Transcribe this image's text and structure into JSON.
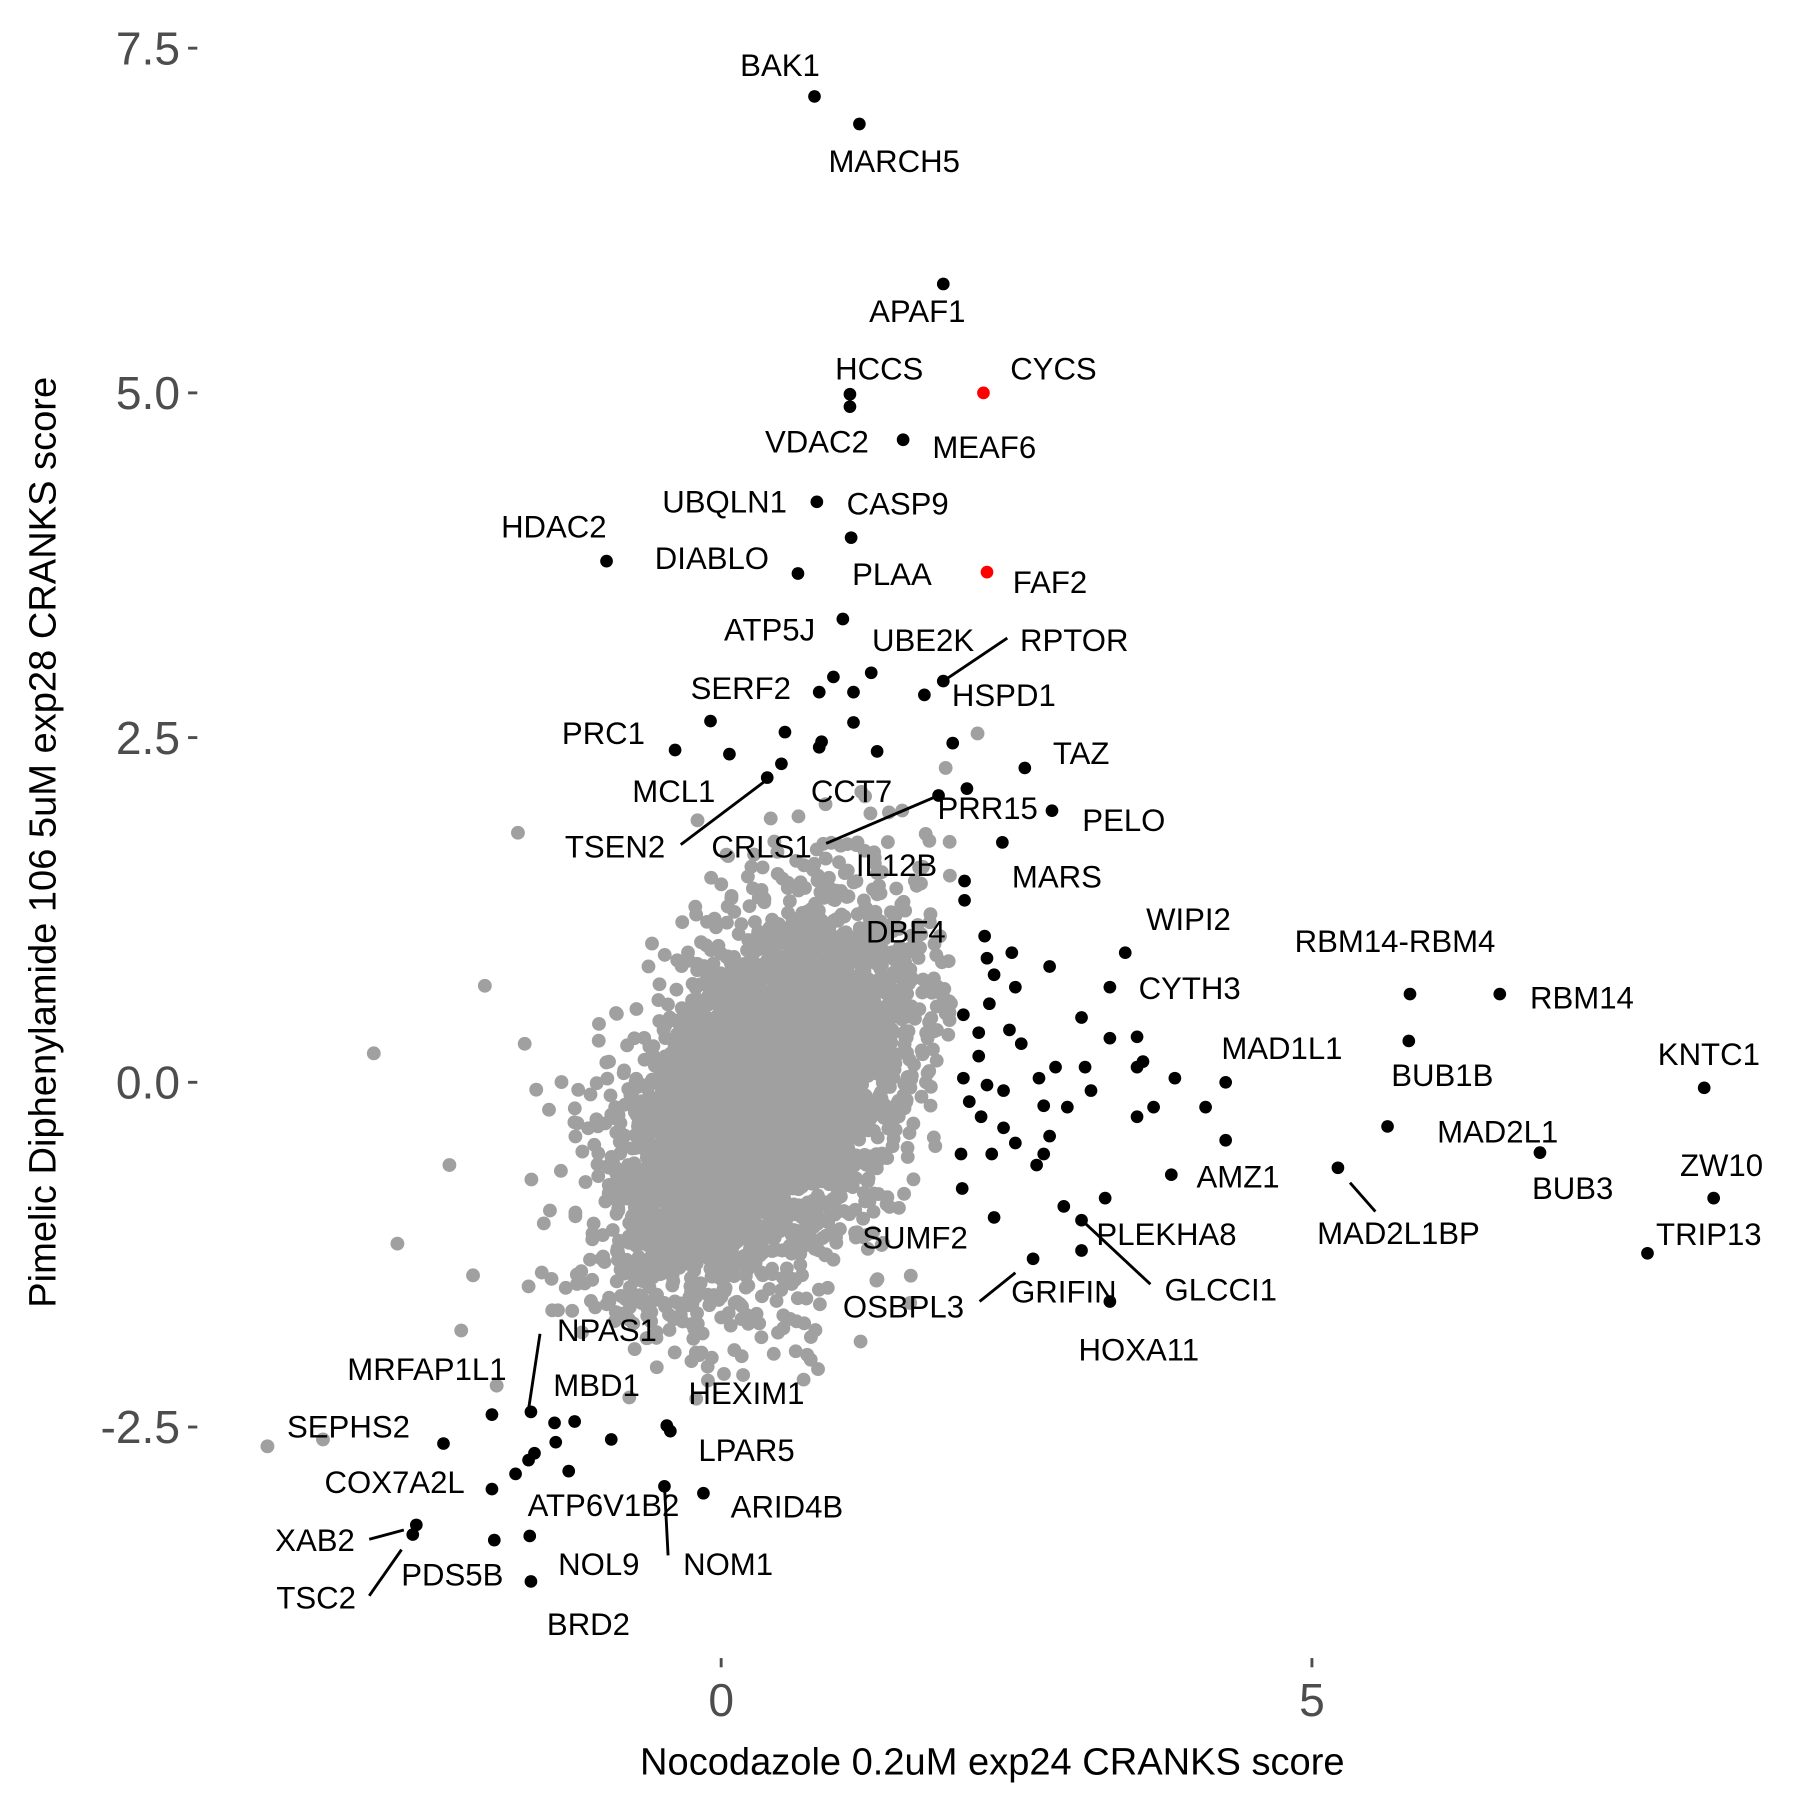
{
  "chart_data": {
    "type": "scatter",
    "title": "",
    "xlabel": "Nocodazole 0.2uM exp24 CRANKS score",
    "ylabel": "Pimelic Diphenylamide 106 5uM exp28 CRANKS score",
    "xlim": [
      -4.0,
      8.8
    ],
    "ylim": [
      -4.0,
      7.8
    ],
    "grid": false,
    "x_ticks": [
      {
        "value": 0,
        "label": "0"
      },
      {
        "value": 5,
        "label": "5"
      }
    ],
    "y_ticks": [
      {
        "value": -2.5,
        "label": "-2.5"
      },
      {
        "value": 0,
        "label": "0.0"
      },
      {
        "value": 2.5,
        "label": "2.5"
      },
      {
        "value": 5,
        "label": "5.0"
      },
      {
        "value": 7.5,
        "label": "7.5"
      }
    ],
    "colors": {
      "background_points": "#a0a0a0",
      "hit_points": "#000000",
      "highlight_points": "#ff0000"
    },
    "labeled_points": [
      {
        "gene": "BAK1",
        "x": 0.79,
        "y": 7.15,
        "group": "hit"
      },
      {
        "gene": "MARCH5",
        "x": 1.17,
        "y": 6.95,
        "group": "hit"
      },
      {
        "gene": "APAF1",
        "x": 1.88,
        "y": 5.79,
        "group": "hit"
      },
      {
        "gene": "HCCS",
        "x": 1.09,
        "y": 4.99,
        "group": "hit"
      },
      {
        "gene": "CYCS",
        "x": 2.22,
        "y": 5.0,
        "group": "highlight"
      },
      {
        "gene": "VDAC2",
        "x": 1.09,
        "y": 4.9,
        "group": "hit"
      },
      {
        "gene": "MEAF6",
        "x": 1.54,
        "y": 4.66,
        "group": "hit"
      },
      {
        "gene": "UBQLN1",
        "x": 0.81,
        "y": 4.21,
        "group": "hit"
      },
      {
        "gene": "CASP9",
        "x": 1.1,
        "y": 3.95,
        "group": "hit"
      },
      {
        "gene": "HDAC2",
        "x": -0.97,
        "y": 3.78,
        "group": "hit"
      },
      {
        "gene": "DIABLO",
        "x": 0.65,
        "y": 3.69,
        "group": "hit"
      },
      {
        "gene": "PLAA",
        "x": 1.03,
        "y": 3.36,
        "group": "hit"
      },
      {
        "gene": "FAF2",
        "x": 2.25,
        "y": 3.7,
        "group": "highlight"
      },
      {
        "gene": "ATP5J",
        "x": 0.95,
        "y": 2.94,
        "group": "hit"
      },
      {
        "gene": "UBE2K",
        "x": 1.27,
        "y": 2.97,
        "group": "hit"
      },
      {
        "gene": "RPTOR",
        "x": 1.88,
        "y": 2.91,
        "group": "hit"
      },
      {
        "gene": "HSPD1",
        "x": 1.72,
        "y": 2.81,
        "group": "hit"
      },
      {
        "gene": "SERF2",
        "x": 0.83,
        "y": 2.83,
        "group": "hit"
      },
      {
        "gene": "PRC1",
        "x": -0.39,
        "y": 2.41,
        "group": "hit"
      },
      {
        "gene": "TAZ",
        "x": 2.57,
        "y": 2.28,
        "group": "hit"
      },
      {
        "gene": "MCL1",
        "x": 0.07,
        "y": 2.38,
        "group": "hit"
      },
      {
        "gene": "CCT7",
        "x": 0.83,
        "y": 2.43,
        "group": "hit"
      },
      {
        "gene": "TSEN2",
        "x": 0.39,
        "y": 2.21,
        "group": "hit"
      },
      {
        "gene": "PRR15",
        "x": 2.08,
        "y": 2.13,
        "group": "hit"
      },
      {
        "gene": "CRLS1",
        "x": 1.84,
        "y": 2.08,
        "group": "hit"
      },
      {
        "gene": "PELO",
        "x": 2.8,
        "y": 1.97,
        "group": "hit"
      },
      {
        "gene": "MARS",
        "x": 2.38,
        "y": 1.74,
        "group": "hit"
      },
      {
        "gene": "IL12B",
        "x": 2.06,
        "y": 1.46,
        "group": "hit"
      },
      {
        "gene": "DBF4",
        "x": 2.23,
        "y": 1.06,
        "group": "hit"
      },
      {
        "gene": "WIPI2",
        "x": 3.42,
        "y": 0.94,
        "group": "hit"
      },
      {
        "gene": "CYTH3",
        "x": 3.29,
        "y": 0.69,
        "group": "hit"
      },
      {
        "gene": "RBM14-RBM4",
        "x": 5.83,
        "y": 0.64,
        "group": "hit"
      },
      {
        "gene": "RBM14",
        "x": 6.59,
        "y": 0.64,
        "group": "hit"
      },
      {
        "gene": "BUB1B",
        "x": 5.82,
        "y": 0.3,
        "group": "hit"
      },
      {
        "gene": "MAD1L1",
        "x": 4.27,
        "y": 0.0,
        "group": "hit"
      },
      {
        "gene": "KNTC1",
        "x": 8.32,
        "y": -0.04,
        "group": "hit"
      },
      {
        "gene": "MAD2L1",
        "x": 5.64,
        "y": -0.32,
        "group": "hit"
      },
      {
        "gene": "BUB3",
        "x": 6.93,
        "y": -0.51,
        "group": "hit"
      },
      {
        "gene": "ZW10",
        "x": 8.4,
        "y": -0.84,
        "group": "hit"
      },
      {
        "gene": "TRIP13",
        "x": 7.84,
        "y": -1.24,
        "group": "hit"
      },
      {
        "gene": "AMZ1",
        "x": 3.81,
        "y": -0.67,
        "group": "hit"
      },
      {
        "gene": "MAD2L1BP",
        "x": 5.22,
        "y": -0.62,
        "group": "hit"
      },
      {
        "gene": "PLEKHA8",
        "x": 2.9,
        "y": -0.9,
        "group": "hit"
      },
      {
        "gene": "GLCCI1",
        "x": 3.05,
        "y": -1.0,
        "group": "hit"
      },
      {
        "gene": "SUMF2",
        "x": 2.31,
        "y": -0.98,
        "group": "hit"
      },
      {
        "gene": "GRIFIN",
        "x": 3.05,
        "y": -1.22,
        "group": "hit"
      },
      {
        "gene": "OSBPL3",
        "x": 2.64,
        "y": -1.28,
        "group": "hit"
      },
      {
        "gene": "HOXA11",
        "x": 3.29,
        "y": -1.59,
        "group": "hit"
      },
      {
        "gene": "NPAS1",
        "x": -1.61,
        "y": -2.39,
        "group": "hit"
      },
      {
        "gene": "MRFAP1L1",
        "x": -1.94,
        "y": -2.41,
        "group": "hit"
      },
      {
        "gene": "MBD1",
        "x": -1.41,
        "y": -2.47,
        "group": "hit"
      },
      {
        "gene": "HEXIM1",
        "x": -0.46,
        "y": -2.49,
        "group": "hit"
      },
      {
        "gene": "LPAR5",
        "x": -0.43,
        "y": -2.53,
        "group": "hit"
      },
      {
        "gene": "SEPHS2",
        "x": -2.35,
        "y": -2.62,
        "group": "hit"
      },
      {
        "gene": "COX7A2L",
        "x": -1.94,
        "y": -2.95,
        "group": "hit"
      },
      {
        "gene": "ATP6V1B2",
        "x": -1.74,
        "y": -2.84,
        "group": "hit"
      },
      {
        "gene": "ARID4B",
        "x": -0.15,
        "y": -2.98,
        "group": "hit"
      },
      {
        "gene": "NOM1",
        "x": -0.48,
        "y": -2.93,
        "group": "hit"
      },
      {
        "gene": "XAB2",
        "x": -2.58,
        "y": -3.21,
        "group": "hit"
      },
      {
        "gene": "TSC2",
        "x": -2.61,
        "y": -3.28,
        "group": "hit"
      },
      {
        "gene": "PDS5B",
        "x": -1.92,
        "y": -3.32,
        "group": "hit"
      },
      {
        "gene": "NOL9",
        "x": -1.62,
        "y": -3.29,
        "group": "hit"
      },
      {
        "gene": "BRD2",
        "x": -1.61,
        "y": -3.62,
        "group": "hit"
      }
    ],
    "unlabeled_hits": [
      [
        2.25,
        0.9
      ],
      [
        2.46,
        0.94
      ],
      [
        2.78,
        0.84
      ],
      [
        2.31,
        0.78
      ],
      [
        2.49,
        0.69
      ],
      [
        2.27,
        0.57
      ],
      [
        2.05,
        0.49
      ],
      [
        2.44,
        0.38
      ],
      [
        2.18,
        0.36
      ],
      [
        2.54,
        0.28
      ],
      [
        2.18,
        0.19
      ],
      [
        2.69,
        0.03
      ],
      [
        2.83,
        0.11
      ],
      [
        3.08,
        0.11
      ],
      [
        3.13,
        -0.06
      ],
      [
        2.93,
        -0.18
      ],
      [
        2.73,
        -0.17
      ],
      [
        2.39,
        -0.06
      ],
      [
        2.25,
        -0.02
      ],
      [
        2.05,
        0.03
      ],
      [
        2.1,
        -0.14
      ],
      [
        2.2,
        -0.25
      ],
      [
        2.39,
        -0.33
      ],
      [
        2.49,
        -0.44
      ],
      [
        2.29,
        -0.52
      ],
      [
        2.03,
        -0.52
      ],
      [
        2.78,
        -0.39
      ],
      [
        2.73,
        -0.52
      ],
      [
        2.67,
        -0.6
      ],
      [
        3.84,
        0.03
      ],
      [
        3.66,
        -0.18
      ],
      [
        3.52,
        0.11
      ],
      [
        4.1,
        -0.18
      ],
      [
        4.27,
        -0.42
      ],
      [
        3.52,
        -0.25
      ],
      [
        3.29,
        0.32
      ],
      [
        3.05,
        0.47
      ],
      [
        3.52,
        0.33
      ],
      [
        3.57,
        0.15
      ],
      [
        3.25,
        -0.84
      ],
      [
        2.04,
        -0.77
      ],
      [
        2.06,
        1.32
      ],
      [
        1.96,
        2.46
      ],
      [
        1.32,
        2.4
      ],
      [
        0.85,
        2.47
      ],
      [
        0.54,
        2.54
      ],
      [
        -0.09,
        2.62
      ],
      [
        1.12,
        2.61
      ],
      [
        0.51,
        2.31
      ],
      [
        1.12,
        2.83
      ],
      [
        -1.24,
        -2.46
      ],
      [
        -1.4,
        -2.61
      ],
      [
        -1.58,
        -2.69
      ],
      [
        -0.93,
        -2.59
      ],
      [
        -1.29,
        -2.82
      ],
      [
        -1.63,
        -2.74
      ]
    ],
    "background_outliers": [
      [
        -3.84,
        -2.64
      ],
      [
        -2.94,
        0.21
      ],
      [
        -3.37,
        -2.59
      ],
      [
        -1.72,
        1.81
      ],
      [
        -2.74,
        -1.17
      ],
      [
        1.18,
        -1.88
      ],
      [
        0.82,
        -2.08
      ],
      [
        2.17,
        2.53
      ],
      [
        1.9,
        2.28
      ],
      [
        -2.1,
        -1.4
      ],
      [
        -2.3,
        -0.6
      ],
      [
        -2.0,
        0.7
      ],
      [
        -2.2,
        -1.8
      ],
      [
        1.6,
        -1.6
      ],
      [
        1.9,
        0.5
      ],
      [
        1.8,
        -0.4
      ],
      [
        -1.9,
        -2.2
      ],
      [
        -0.2,
        1.9
      ]
    ],
    "background_cloud": {
      "n": 4500,
      "mean": [
        0.35,
        -0.15
      ],
      "sd": [
        0.62,
        0.7
      ],
      "correlation": 0.45
    }
  }
}
